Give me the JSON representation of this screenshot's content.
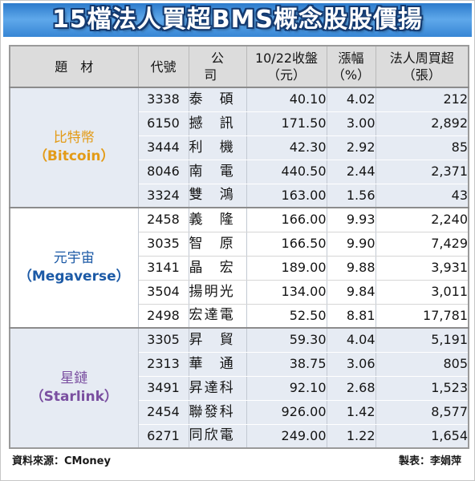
{
  "chart_data": {
    "type": "table",
    "title": "15檔法人買超BMS概念股股價揚",
    "columns": {
      "theme": "題材",
      "code": "代號",
      "company": "公司",
      "close": "10/22收盤",
      "close_unit": "（元）",
      "change": "漲幅",
      "change_unit": "（%）",
      "net_buy": "法人周買超",
      "net_buy_unit": "（張）"
    },
    "groups": [
      {
        "name": "比特幣",
        "name_en": "（Bitcoin）",
        "color": "#E39B17",
        "rows": [
          {
            "code": "3338",
            "company": "泰碩",
            "close": "40.10",
            "change": "4.02",
            "net_buy": "212"
          },
          {
            "code": "6150",
            "company": "撼訊",
            "close": "171.50",
            "change": "3.00",
            "net_buy": "2,892"
          },
          {
            "code": "3444",
            "company": "利機",
            "close": "42.30",
            "change": "2.92",
            "net_buy": "85"
          },
          {
            "code": "8046",
            "company": "南電",
            "close": "440.50",
            "change": "2.44",
            "net_buy": "2,371"
          },
          {
            "code": "3324",
            "company": "雙鴻",
            "close": "163.00",
            "change": "1.56",
            "net_buy": "43"
          }
        ]
      },
      {
        "name": "元宇宙",
        "name_en": "（Megaverse）",
        "color": "#1C5AA6",
        "rows": [
          {
            "code": "2458",
            "company": "義隆",
            "close": "166.00",
            "change": "9.93",
            "net_buy": "2,240"
          },
          {
            "code": "3035",
            "company": "智原",
            "close": "166.50",
            "change": "9.90",
            "net_buy": "7,429"
          },
          {
            "code": "3141",
            "company": "晶宏",
            "close": "189.00",
            "change": "9.88",
            "net_buy": "3,931"
          },
          {
            "code": "3504",
            "company": "揚明光",
            "close": "134.00",
            "change": "9.84",
            "net_buy": "3,011"
          },
          {
            "code": "2498",
            "company": "宏達電",
            "close": "52.50",
            "change": "8.81",
            "net_buy": "17,781"
          }
        ]
      },
      {
        "name": "星鏈",
        "name_en": "（Starlink）",
        "color": "#7A4FA0",
        "rows": [
          {
            "code": "3305",
            "company": "昇貿",
            "close": "59.30",
            "change": "4.04",
            "net_buy": "5,191"
          },
          {
            "code": "2313",
            "company": "華通",
            "close": "38.75",
            "change": "3.06",
            "net_buy": "805"
          },
          {
            "code": "3491",
            "company": "昇達科",
            "close": "92.10",
            "change": "2.68",
            "net_buy": "1,523"
          },
          {
            "code": "2454",
            "company": "聯發科",
            "close": "926.00",
            "change": "1.42",
            "net_buy": "8,577"
          },
          {
            "code": "6271",
            "company": "同欣電",
            "close": "249.00",
            "change": "1.22",
            "net_buy": "1,654"
          }
        ]
      }
    ]
  },
  "footer": {
    "source": "資料來源：CMoney",
    "author": "製表：李娟萍"
  }
}
